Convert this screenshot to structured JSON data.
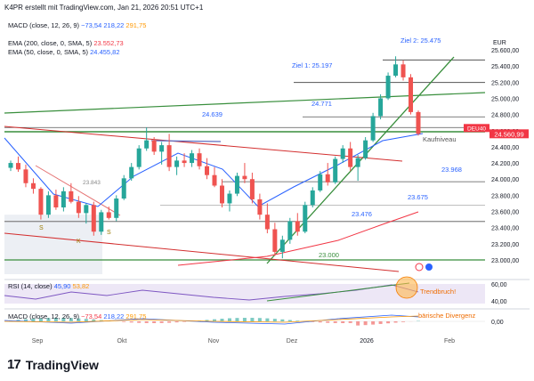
{
  "header": {
    "text": "K4PR erstellt mit TradingView.com, Jan 21, 2026 20:51 UTC+1"
  },
  "top_macd": {
    "label": "MACD (close, 12, 26, 9)",
    "v1": "−73,54",
    "v2": "218,22",
    "v3": "291,75"
  },
  "ema200": {
    "label": "EMA (200, close, 0, SMA, 5)",
    "value": "23.552,73"
  },
  "ema50": {
    "label": "EMA (50, close, 0, SMA, 5)",
    "value": "24.455,82"
  },
  "rsi": {
    "label": "RSI (14, close)",
    "v1": "45,90",
    "v2": "53,82"
  },
  "bottom_macd": {
    "label": "MACD (close, 12, 26, 9)",
    "v1": "−73,54",
    "v2": "218,22",
    "v3": "291,75"
  },
  "annotations": {
    "ziel2": "Ziel 2: 25.475",
    "ziel1": "Ziel 1: 25.197",
    "l24771": "24.771",
    "l24639": "24.639",
    "l23843": "23.843",
    "l23968": "23.968",
    "l23675": "23.675",
    "l23476": "23.476",
    "l23000": "23.000",
    "kaufniveau": "Kaufniveau",
    "trendbruch": "Trendbruch!",
    "divergenz": "bärische Divergenz",
    "s1": "S",
    "k": "K",
    "s2": "S"
  },
  "colors": {
    "up": "#26a69a",
    "down": "#ef5350",
    "ema50": "#2962ff",
    "ema200": "#f23645",
    "trend": "#388e3c",
    "price": "#f23645"
  },
  "chart_data": {
    "type": "candlestick",
    "title": "",
    "currency": "EUR",
    "price_axis": [
      "25.600,00",
      "25.400,00",
      "25.200,00",
      "25.000,00",
      "24.800,00",
      "24.600,00",
      "24.400,00",
      "24.200,00",
      "24.000,00",
      "23.800,00",
      "23.600,00",
      "23.400,00",
      "23.200,00",
      "23.000,00"
    ],
    "time_axis": [
      "Sep",
      "Okt",
      "Nov",
      "Dez",
      "2026",
      "Feb"
    ],
    "last_price_label": "DEU40",
    "last_price": "24.560,99",
    "ylim": [
      22900,
      25650
    ],
    "rsi_axis": [
      "60,00",
      "40,00"
    ],
    "macd_axis": [
      "0,00"
    ],
    "candles": [
      [
        24140,
        24230,
        24100,
        24200
      ],
      [
        24200,
        24280,
        24090,
        24120
      ],
      [
        24120,
        24180,
        23900,
        23950
      ],
      [
        23950,
        24010,
        23820,
        23880
      ],
      [
        23880,
        23900,
        23500,
        23560
      ],
      [
        23560,
        23850,
        23520,
        23800
      ],
      [
        23800,
        23870,
        23620,
        23650
      ],
      [
        23650,
        23900,
        23600,
        23850
      ],
      [
        23850,
        23950,
        23700,
        23720
      ],
      [
        23720,
        23790,
        23520,
        23580
      ],
      [
        23580,
        23700,
        23450,
        23680
      ],
      [
        23680,
        23720,
        23300,
        23350
      ],
      [
        23350,
        23620,
        23310,
        23590
      ],
      [
        23590,
        23660,
        23500,
        23520
      ],
      [
        23520,
        23800,
        23480,
        23760
      ],
      [
        23760,
        24050,
        23740,
        24010
      ],
      [
        24010,
        24200,
        23980,
        24150
      ],
      [
        24150,
        24420,
        24120,
        24380
      ],
      [
        24380,
        24640,
        24350,
        24480
      ],
      [
        24480,
        24520,
        24300,
        24340
      ],
      [
        24340,
        24460,
        24180,
        24420
      ],
      [
        24420,
        24560,
        24100,
        24150
      ],
      [
        24150,
        24280,
        24050,
        24230
      ],
      [
        24230,
        24320,
        24150,
        24200
      ],
      [
        24200,
        24360,
        24150,
        24320
      ],
      [
        24320,
        24380,
        24120,
        24160
      ],
      [
        24160,
        24260,
        24000,
        24050
      ],
      [
        24050,
        24150,
        23900,
        23920
      ],
      [
        23920,
        24000,
        23650,
        23700
      ],
      [
        23700,
        23860,
        23600,
        23820
      ],
      [
        23820,
        24080,
        23790,
        24040
      ],
      [
        24040,
        24200,
        23950,
        24000
      ],
      [
        24000,
        24080,
        23700,
        23750
      ],
      [
        23750,
        23820,
        23500,
        23560
      ],
      [
        23560,
        23700,
        23330,
        23380
      ],
      [
        23380,
        23460,
        23050,
        23100
      ],
      [
        23100,
        23300,
        23020,
        23250
      ],
      [
        23250,
        23520,
        23200,
        23480
      ],
      [
        23480,
        23580,
        23300,
        23350
      ],
      [
        23350,
        23720,
        23330,
        23680
      ],
      [
        23680,
        23900,
        23650,
        23860
      ],
      [
        23860,
        24100,
        23840,
        24060
      ],
      [
        24060,
        24200,
        23920,
        23960
      ],
      [
        23960,
        24280,
        23940,
        24250
      ],
      [
        24250,
        24420,
        24200,
        24380
      ],
      [
        24380,
        24460,
        24100,
        24150
      ],
      [
        24150,
        24300,
        23980,
        24260
      ],
      [
        24260,
        24520,
        24240,
        24480
      ],
      [
        24480,
        24820,
        24460,
        24780
      ],
      [
        24780,
        25050,
        24740,
        25000
      ],
      [
        25000,
        25320,
        24980,
        25280
      ],
      [
        25280,
        25520,
        25260,
        25420
      ],
      [
        25420,
        25470,
        25220,
        25260
      ],
      [
        25260,
        25300,
        24800,
        24830
      ],
      [
        24830,
        24850,
        24540,
        24560
      ]
    ]
  }
}
